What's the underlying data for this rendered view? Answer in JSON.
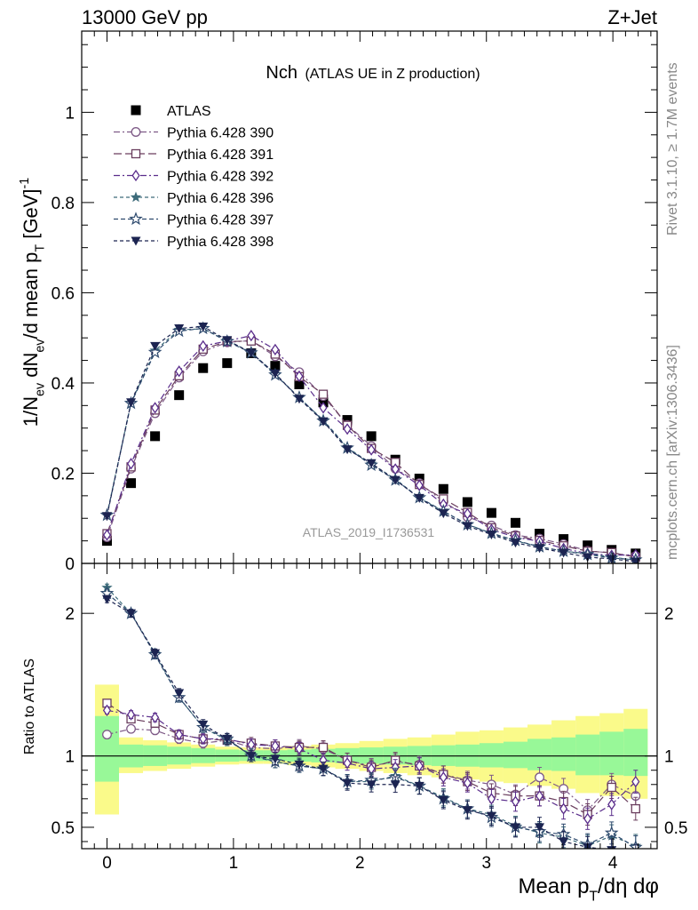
{
  "header": {
    "left": "13000 GeV pp",
    "right": "Z+Jet"
  },
  "plot": {
    "title_main": "Nch",
    "title_sub": "(ATLAS UE in Z production)",
    "analysis_id": "ATLAS_2019_I1736531",
    "side_rivet": "Rivet 3.1.10, ≥ 1.7M events",
    "side_mcplots": "mcplots.cern.ch [arXiv:1306.3436]"
  },
  "axes": {
    "xlabel": "Mean p_T/dη dφ",
    "ylabel_top": "1/N_ev dN_ev/d mean p_T [GeV]^-1",
    "ylabel_ratio": "Ratio to ATLAS"
  },
  "colors": {
    "atlas": "#000000",
    "p390": "#7e5a87",
    "p391": "#6a3e5e",
    "p392": "#5b2e8c",
    "p396": "#3d6b7a",
    "p397": "#2e4a6e",
    "p398": "#1c2451",
    "band_inner": "#98f898",
    "band_outer": "#fafa8a"
  },
  "chart_data": [
    {
      "type": "scatter",
      "panel": "main",
      "xlim": [
        -0.2,
        4.35
      ],
      "ylim": [
        0,
        1.18
      ],
      "x_ticks": [
        0,
        1,
        2,
        3,
        4
      ],
      "y_ticks": [
        0,
        0.2,
        0.4,
        0.6,
        0.8,
        1
      ],
      "x": [
        0,
        0.19,
        0.38,
        0.57,
        0.76,
        0.95,
        1.14,
        1.33,
        1.52,
        1.71,
        1.9,
        2.09,
        2.28,
        2.47,
        2.66,
        2.85,
        3.04,
        3.23,
        3.42,
        3.61,
        3.8,
        3.99,
        4.18
      ],
      "legend_placement": "top-left",
      "series": [
        {
          "name": "ATLAS",
          "marker": "filled-square",
          "values": [
            0.05,
            0.178,
            0.282,
            0.373,
            0.433,
            0.444,
            0.466,
            0.438,
            0.397,
            0.357,
            0.318,
            0.282,
            0.23,
            0.188,
            0.165,
            0.136,
            0.112,
            0.09,
            0.066,
            0.054,
            0.04,
            0.03,
            0.022
          ]
        },
        {
          "name": "Pythia 6.428 390",
          "marker": "open-circle",
          "values": [
            0.058,
            0.21,
            0.333,
            0.412,
            0.47,
            0.49,
            0.494,
            0.459,
            0.424,
            0.371,
            0.307,
            0.26,
            0.21,
            0.178,
            0.137,
            0.103,
            0.084,
            0.063,
            0.055,
            0.043,
            0.028,
            0.023,
            0.016
          ]
        },
        {
          "name": "Pythia 6.428 391",
          "marker": "open-square",
          "values": [
            0.066,
            0.214,
            0.34,
            0.416,
            0.475,
            0.492,
            0.493,
            0.464,
            0.414,
            0.375,
            0.306,
            0.255,
            0.224,
            0.175,
            0.143,
            0.113,
            0.079,
            0.061,
            0.051,
            0.039,
            0.027,
            0.024,
            0.014
          ]
        },
        {
          "name": "Pythia 6.428 392",
          "marker": "open-diamond",
          "values": [
            0.063,
            0.221,
            0.345,
            0.426,
            0.482,
            0.493,
            0.505,
            0.474,
            0.415,
            0.345,
            0.298,
            0.252,
            0.209,
            0.173,
            0.131,
            0.11,
            0.075,
            0.058,
            0.049,
            0.033,
            0.022,
            0.018,
            0.019
          ]
        },
        {
          "name": "Pythia 6.428 396",
          "marker": "filled-star",
          "values": [
            0.109,
            0.356,
            0.472,
            0.518,
            0.52,
            0.494,
            0.468,
            0.42,
            0.367,
            0.318,
            0.257,
            0.221,
            0.187,
            0.145,
            0.115,
            0.087,
            0.066,
            0.05,
            0.037,
            0.027,
            0.022,
            0.014,
            0.007
          ]
        },
        {
          "name": "Pythia 6.428 397",
          "marker": "open-star",
          "values": [
            0.107,
            0.355,
            0.468,
            0.515,
            0.521,
            0.492,
            0.467,
            0.418,
            0.368,
            0.316,
            0.256,
            0.218,
            0.185,
            0.146,
            0.116,
            0.086,
            0.067,
            0.051,
            0.037,
            0.027,
            0.02,
            0.012,
            0.008
          ]
        },
        {
          "name": "Pythia 6.428 398",
          "marker": "filled-triangle-down",
          "values": [
            0.105,
            0.357,
            0.482,
            0.521,
            0.525,
            0.495,
            0.467,
            0.421,
            0.365,
            0.315,
            0.253,
            0.222,
            0.185,
            0.145,
            0.111,
            0.083,
            0.064,
            0.046,
            0.034,
            0.024,
            0.014,
            0.01,
            0.004
          ]
        }
      ]
    },
    {
      "type": "scatter",
      "panel": "ratio",
      "xlim": [
        -0.2,
        4.35
      ],
      "ylim": [
        0.35,
        2.35
      ],
      "y_ticks": [
        0.5,
        1,
        2
      ],
      "reference_line": 1,
      "x": [
        0,
        0.19,
        0.38,
        0.57,
        0.76,
        0.95,
        1.14,
        1.33,
        1.52,
        1.71,
        1.9,
        2.09,
        2.28,
        2.47,
        2.66,
        2.85,
        3.04,
        3.23,
        3.42,
        3.61,
        3.8,
        3.99,
        4.18
      ],
      "band_inner": {
        "low": [
          0.82,
          0.92,
          0.93,
          0.94,
          0.95,
          0.96,
          0.965,
          0.965,
          0.96,
          0.955,
          0.95,
          0.945,
          0.94,
          0.935,
          0.93,
          0.925,
          0.92,
          0.915,
          0.9,
          0.895,
          0.865,
          0.865,
          0.86
        ],
        "high": [
          1.28,
          1.08,
          1.075,
          1.065,
          1.055,
          1.045,
          1.04,
          1.04,
          1.045,
          1.05,
          1.055,
          1.06,
          1.065,
          1.07,
          1.075,
          1.08,
          1.09,
          1.1,
          1.12,
          1.13,
          1.15,
          1.17,
          1.19
        ]
      },
      "band_outer": {
        "low": [
          0.59,
          0.88,
          0.895,
          0.91,
          0.925,
          0.94,
          0.945,
          0.945,
          0.935,
          0.92,
          0.91,
          0.895,
          0.88,
          0.865,
          0.85,
          0.835,
          0.82,
          0.81,
          0.79,
          0.77,
          0.74,
          0.72,
          0.7
        ],
        "high": [
          1.5,
          1.13,
          1.11,
          1.095,
          1.08,
          1.065,
          1.06,
          1.06,
          1.07,
          1.08,
          1.09,
          1.105,
          1.12,
          1.13,
          1.15,
          1.17,
          1.18,
          1.2,
          1.22,
          1.25,
          1.28,
          1.3,
          1.33
        ]
      },
      "series": [
        {
          "name": "Pythia 6.428 390",
          "values": [
            1.15,
            1.19,
            1.18,
            1.12,
            1.09,
            1.11,
            1.06,
            1.05,
            1.07,
            1.05,
            0.97,
            0.93,
            0.96,
            0.94,
            0.87,
            0.83,
            0.8,
            0.73,
            0.85,
            0.77,
            0.62,
            0.8,
            0.72
          ]
        },
        {
          "name": "Pythia 6.428 391",
          "values": [
            1.37,
            1.26,
            1.23,
            1.15,
            1.12,
            1.11,
            1.09,
            1.07,
            1.06,
            1.06,
            0.97,
            0.92,
            0.97,
            0.93,
            0.87,
            0.82,
            0.74,
            0.72,
            0.72,
            0.68,
            0.59,
            0.78,
            0.63
          ]
        },
        {
          "name": "Pythia 6.428 392",
          "values": [
            1.32,
            1.29,
            1.27,
            1.15,
            1.12,
            1.12,
            1.08,
            1.07,
            1.05,
            0.97,
            0.95,
            0.91,
            0.92,
            0.93,
            0.85,
            0.81,
            0.7,
            0.68,
            0.72,
            0.63,
            0.56,
            0.66,
            0.82
          ]
        },
        {
          "name": "Pythia 6.428 396",
          "values": [
            2.18,
            2.0,
            1.72,
            1.41,
            1.2,
            1.11,
            1.01,
            0.96,
            0.93,
            0.91,
            0.82,
            0.82,
            0.86,
            0.79,
            0.71,
            0.63,
            0.59,
            0.51,
            0.46,
            0.43,
            0.37,
            0.44,
            0.37
          ]
        },
        {
          "name": "Pythia 6.428 397",
          "values": [
            2.14,
            2.0,
            1.71,
            1.41,
            1.2,
            1.12,
            1.0,
            0.96,
            0.93,
            0.91,
            0.82,
            0.83,
            0.85,
            0.79,
            0.7,
            0.63,
            0.57,
            0.5,
            0.47,
            0.45,
            0.38,
            0.46,
            0.36
          ]
        },
        {
          "name": "Pythia 6.428 398",
          "values": [
            2.1,
            2.0,
            1.72,
            1.44,
            1.22,
            1.12,
            1.0,
            0.98,
            0.94,
            0.91,
            0.81,
            0.8,
            0.8,
            0.79,
            0.69,
            0.62,
            0.58,
            0.5,
            0.5,
            0.4,
            0.36,
            0.34,
            0.3
          ]
        }
      ]
    }
  ]
}
